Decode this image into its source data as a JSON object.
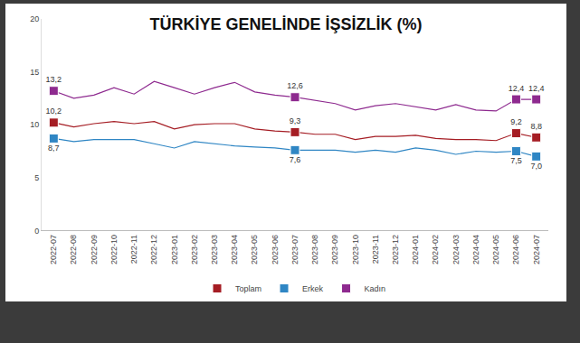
{
  "chart_data": {
    "type": "line",
    "title": "TÜRKİYE GENELİNDE İŞSİZLİK (%)",
    "categories": [
      "2022-07",
      "2022-08",
      "2022-09",
      "2022-10",
      "2022-11",
      "2022-12",
      "2023-01",
      "2023-02",
      "2023-03",
      "2023-04",
      "2023-05",
      "2023-06",
      "2023-07",
      "2023-08",
      "2023-09",
      "2023-10",
      "2023-11",
      "2023-12",
      "2024-01",
      "2024-02",
      "2024-03",
      "2024-04",
      "2024-05",
      "2024-06",
      "2024-07"
    ],
    "series": [
      {
        "name": "Toplam",
        "color": "#a51d24",
        "marker": "square",
        "values": [
          10.2,
          9.8,
          10.1,
          10.3,
          10.1,
          10.3,
          9.6,
          10.0,
          10.1,
          10.1,
          9.6,
          9.4,
          9.3,
          9.1,
          9.1,
          8.6,
          8.9,
          8.9,
          9.0,
          8.7,
          8.6,
          8.6,
          8.5,
          9.2,
          8.8
        ],
        "value_labels": [
          "10,2",
          null,
          null,
          null,
          null,
          null,
          null,
          null,
          null,
          null,
          null,
          null,
          "9,3",
          null,
          null,
          null,
          null,
          null,
          null,
          null,
          null,
          null,
          null,
          "9,2",
          "8,8"
        ]
      },
      {
        "name": "Erkek",
        "color": "#2f86c4",
        "marker": "square",
        "values": [
          8.7,
          8.4,
          8.6,
          8.6,
          8.6,
          8.2,
          7.8,
          8.4,
          8.2,
          8.0,
          7.9,
          7.8,
          7.6,
          7.6,
          7.6,
          7.4,
          7.6,
          7.4,
          7.8,
          7.6,
          7.2,
          7.5,
          7.4,
          7.5,
          7.0
        ],
        "value_labels": [
          "8,7",
          null,
          null,
          null,
          null,
          null,
          null,
          null,
          null,
          null,
          null,
          null,
          "7,6",
          null,
          null,
          null,
          null,
          null,
          null,
          null,
          null,
          null,
          null,
          "7,5",
          "7,0"
        ]
      },
      {
        "name": "Kadın",
        "color": "#8e2a8f",
        "marker": "square",
        "values": [
          13.2,
          12.5,
          12.8,
          13.5,
          12.9,
          14.1,
          13.5,
          12.9,
          13.5,
          14.0,
          13.1,
          12.8,
          12.6,
          12.3,
          12.0,
          11.4,
          11.8,
          12.0,
          11.7,
          11.4,
          11.9,
          11.4,
          11.3,
          12.4,
          12.4
        ],
        "value_labels": [
          "13,2",
          null,
          null,
          null,
          null,
          null,
          null,
          null,
          null,
          null,
          null,
          null,
          "12,6",
          null,
          null,
          null,
          null,
          null,
          null,
          null,
          null,
          null,
          null,
          "12,4",
          "12,4"
        ]
      }
    ],
    "ylim": [
      0,
      20
    ],
    "yticks": [
      0,
      5,
      10,
      15,
      20
    ],
    "grid": false,
    "legend": "bottom",
    "data_labels": true
  }
}
